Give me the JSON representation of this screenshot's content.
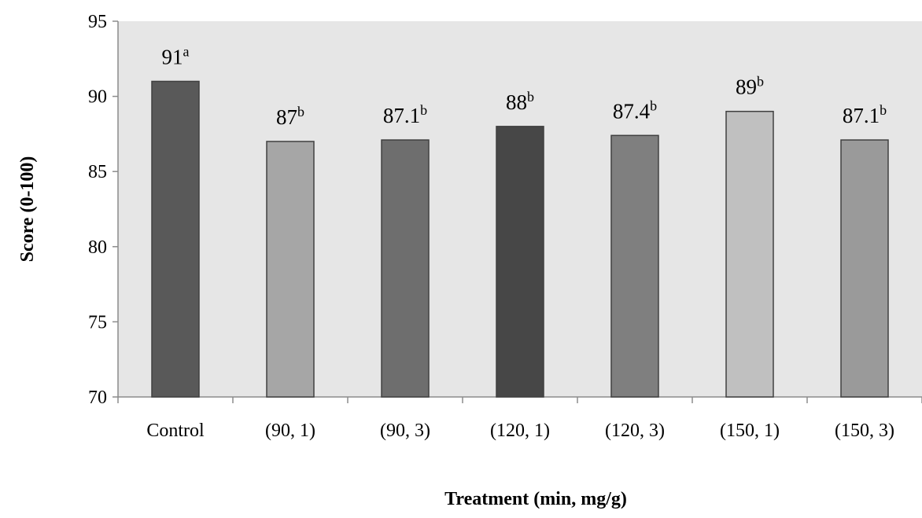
{
  "chart_data": {
    "type": "bar",
    "title": "",
    "xlabel": "Treatment (min, mg/g)",
    "ylabel": "Score (0-100)",
    "ylim": [
      70,
      95
    ],
    "yticks": [
      70,
      75,
      80,
      85,
      90,
      95
    ],
    "categories": [
      "Control",
      "(90, 1)",
      "(90, 3)",
      "(120, 1)",
      "(120, 3)",
      "(150, 1)",
      "(150, 3)"
    ],
    "values": [
      91,
      87,
      87.1,
      88,
      87.4,
      89,
      87.1
    ],
    "value_labels": [
      "91",
      "87",
      "87.1",
      "88",
      "87.4",
      "89",
      "87.1"
    ],
    "significance_letters": [
      "a",
      "b",
      "b",
      "b",
      "b",
      "b",
      "b"
    ],
    "bar_colors": [
      "#595959",
      "#a6a6a6",
      "#6e6e6e",
      "#474747",
      "#7f7f7f",
      "#c0c0c0",
      "#9a9a9a"
    ],
    "plot_background": "#e6e6e6",
    "grid": false,
    "legend": "none"
  }
}
